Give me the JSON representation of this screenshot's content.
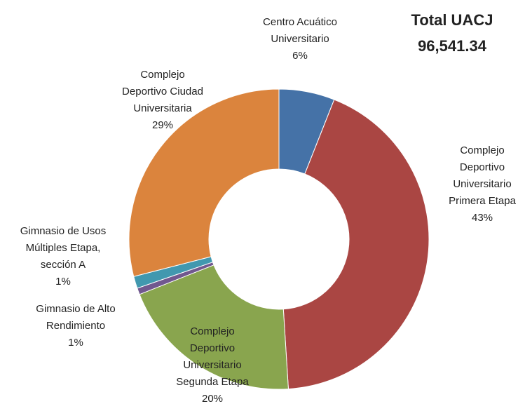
{
  "chart_data": {
    "type": "donut",
    "title": "Total UACJ",
    "subtitle": "96,541.34",
    "categories": [
      "Centro Acuático\nUniversitario",
      "Complejo\nDeportivo\nUniversitario\nPrimera Etapa",
      "Complejo\nDeportivo\nUniversitario\nSegunda Etapa",
      "Gimnasio de Alto\nRendimiento",
      "Gimnasio de Usos\nMúltiples Etapa,\nsección A",
      "Complejo\nDeportivo Ciudad\nUniversitaria"
    ],
    "values": [
      6,
      43,
      20,
      0.7,
      1.3,
      29
    ],
    "value_labels": [
      "6%",
      "43%",
      "20%",
      "1%",
      "1%",
      "29%"
    ],
    "colors": [
      "#4572a7",
      "#aa4643",
      "#89a54e",
      "#71588f",
      "#4198af",
      "#db843d"
    ]
  }
}
